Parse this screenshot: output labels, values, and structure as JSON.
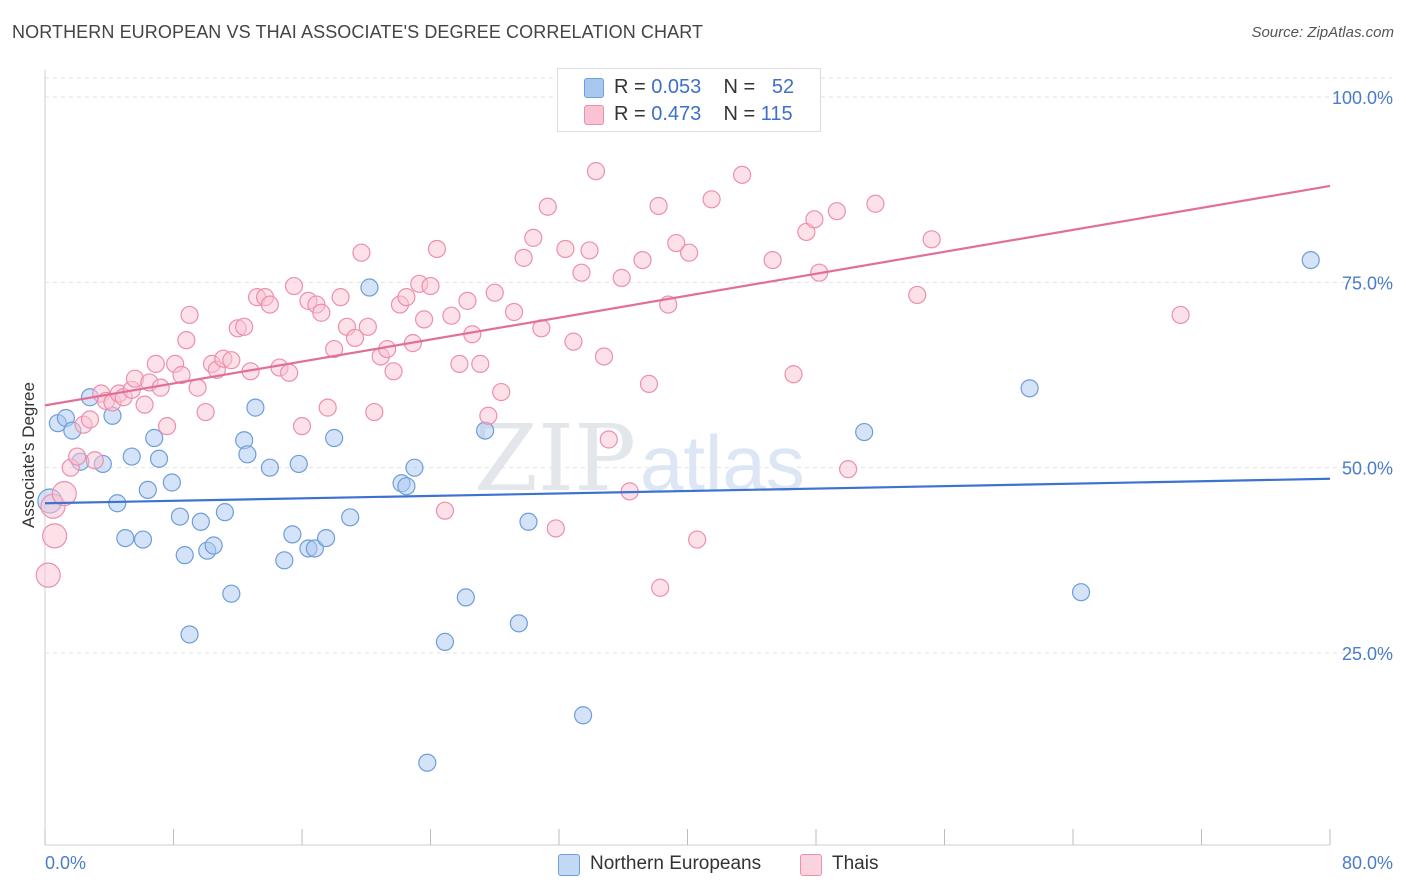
{
  "title": "NORTHERN EUROPEAN VS THAI ASSOCIATE'S DEGREE CORRELATION CHART",
  "source": "Source: ZipAtlas.com",
  "legend": {
    "r_label": "R =",
    "n_label": "N =",
    "rows": [
      {
        "r": "0.053",
        "n": "52",
        "color": "#a9c8f0",
        "border": "#6e9ed8"
      },
      {
        "r": "0.473",
        "n": "115",
        "color": "#f9c3d4",
        "border": "#ec8fae"
      }
    ]
  },
  "bottom_legend": [
    {
      "label": "Northern Europeans",
      "color": "#c3d8f5",
      "border": "#6e9ed8"
    },
    {
      "label": "Thais",
      "color": "#fbd3df",
      "border": "#ec8fae"
    }
  ],
  "watermark": {
    "zip": "ZIP",
    "atlas": "atlas"
  },
  "chart_data": {
    "type": "scatter",
    "title": "NORTHERN EUROPEAN VS THAI ASSOCIATE'S DEGREE CORRELATION CHART",
    "xlabel": "",
    "ylabel": "Associate's Degree",
    "xlim": [
      0,
      80
    ],
    "ylim": [
      0,
      105
    ],
    "x_tick_labels": [
      "0.0%",
      "80.0%"
    ],
    "y_ticks": [
      25,
      50,
      75,
      100
    ],
    "y_tick_labels": [
      "25.0%",
      "50.0%",
      "75.0%",
      "100.0%"
    ],
    "grid": "horizontal dashed",
    "series": [
      {
        "name": "Northern Europeans",
        "color": "#6e9ed8",
        "fill": "#a9c8f0",
        "line_color": "#3d72d1",
        "trend": {
          "x0": 0,
          "y0": 45.2,
          "x1": 80,
          "y1": 48.5
        },
        "points": [
          [
            0.3,
            45.5
          ],
          [
            0.8,
            56
          ],
          [
            1.3,
            56.7
          ],
          [
            1.7,
            55
          ],
          [
            2.2,
            50.8
          ],
          [
            2.8,
            59.5
          ],
          [
            3.6,
            50.5
          ],
          [
            4.2,
            57
          ],
          [
            4.5,
            45.2
          ],
          [
            5,
            40.5
          ],
          [
            5.4,
            51.5
          ],
          [
            6.1,
            40.3
          ],
          [
            6.4,
            47
          ],
          [
            6.8,
            54
          ],
          [
            7.1,
            51.2
          ],
          [
            7.9,
            48
          ],
          [
            8.4,
            43.4
          ],
          [
            8.7,
            38.2
          ],
          [
            9,
            27.5
          ],
          [
            9.7,
            42.7
          ],
          [
            10.1,
            38.8
          ],
          [
            10.5,
            39.5
          ],
          [
            11.2,
            44
          ],
          [
            11.6,
            33
          ],
          [
            12.4,
            53.7
          ],
          [
            12.6,
            51.8
          ],
          [
            13.1,
            58.1
          ],
          [
            14,
            50
          ],
          [
            14.9,
            37.5
          ],
          [
            15.4,
            41
          ],
          [
            15.8,
            50.5
          ],
          [
            16.4,
            39.1
          ],
          [
            16.8,
            39.1
          ],
          [
            17.5,
            40.5
          ],
          [
            18,
            54
          ],
          [
            19,
            43.3
          ],
          [
            20.2,
            74.3
          ],
          [
            22.2,
            47.9
          ],
          [
            22.5,
            47.5
          ],
          [
            23,
            50
          ],
          [
            23.8,
            10.2
          ],
          [
            24.9,
            26.5
          ],
          [
            26.2,
            32.5
          ],
          [
            27.4,
            55
          ],
          [
            29.5,
            29
          ],
          [
            30.1,
            42.7
          ],
          [
            33.5,
            16.6
          ],
          [
            51,
            54.8
          ],
          [
            61.3,
            60.7
          ],
          [
            64.5,
            33.2
          ],
          [
            78.8,
            78
          ]
        ]
      },
      {
        "name": "Thais",
        "color": "#ec8fae",
        "fill": "#f9c3d4",
        "line_color": "#e0709a",
        "trend": {
          "x0": 0,
          "y0": 58.4,
          "x1": 80,
          "y1": 88
        },
        "points": [
          [
            0.2,
            35.5
          ],
          [
            0.5,
            44.8
          ],
          [
            0.6,
            40.8
          ],
          [
            1.2,
            46.5
          ],
          [
            1.6,
            50
          ],
          [
            2,
            51.5
          ],
          [
            2.4,
            55.8
          ],
          [
            2.8,
            56.5
          ],
          [
            3.1,
            51
          ],
          [
            3.5,
            60
          ],
          [
            3.8,
            59
          ],
          [
            4.2,
            58.8
          ],
          [
            4.6,
            60
          ],
          [
            4.9,
            59.5
          ],
          [
            5.4,
            60.5
          ],
          [
            5.6,
            62
          ],
          [
            6.2,
            58.5
          ],
          [
            6.5,
            61.5
          ],
          [
            6.9,
            64
          ],
          [
            7.2,
            60.8
          ],
          [
            7.6,
            55.6
          ],
          [
            8.1,
            64
          ],
          [
            8.5,
            62.5
          ],
          [
            8.8,
            67.2
          ],
          [
            9,
            70.6
          ],
          [
            9.5,
            60.8
          ],
          [
            10,
            57.5
          ],
          [
            10.4,
            64
          ],
          [
            10.7,
            63.2
          ],
          [
            11.1,
            64.7
          ],
          [
            11.6,
            64.5
          ],
          [
            12,
            68.8
          ],
          [
            12.4,
            69
          ],
          [
            12.8,
            63
          ],
          [
            13.2,
            73
          ],
          [
            13.7,
            73
          ],
          [
            14,
            72
          ],
          [
            14.6,
            63.5
          ],
          [
            15.2,
            62.8
          ],
          [
            15.5,
            74.5
          ],
          [
            16,
            55.6
          ],
          [
            16.4,
            72.5
          ],
          [
            16.9,
            72
          ],
          [
            17.2,
            70.9
          ],
          [
            17.6,
            58.1
          ],
          [
            18,
            66
          ],
          [
            18.4,
            73
          ],
          [
            18.8,
            69
          ],
          [
            19.3,
            67.5
          ],
          [
            19.7,
            79
          ],
          [
            20.1,
            69
          ],
          [
            20.5,
            57.5
          ],
          [
            20.9,
            65
          ],
          [
            21.3,
            66
          ],
          [
            21.7,
            63
          ],
          [
            22.1,
            72
          ],
          [
            22.5,
            73
          ],
          [
            22.9,
            66.8
          ],
          [
            23.3,
            74.8
          ],
          [
            23.6,
            70
          ],
          [
            24,
            74.5
          ],
          [
            24.4,
            79.5
          ],
          [
            24.9,
            44.2
          ],
          [
            25.3,
            70.5
          ],
          [
            25.8,
            64
          ],
          [
            26.3,
            72.5
          ],
          [
            26.6,
            68
          ],
          [
            27.1,
            64
          ],
          [
            27.6,
            57
          ],
          [
            28,
            73.6
          ],
          [
            28.4,
            60.2
          ],
          [
            29.2,
            71
          ],
          [
            29.8,
            78.3
          ],
          [
            30.4,
            81
          ],
          [
            30.9,
            68.8
          ],
          [
            31.3,
            85.2
          ],
          [
            31.8,
            41.8
          ],
          [
            32.4,
            79.5
          ],
          [
            32.9,
            67
          ],
          [
            33.4,
            76.3
          ],
          [
            33.9,
            79.3
          ],
          [
            34.3,
            90
          ],
          [
            34.8,
            65
          ],
          [
            35.1,
            53.8
          ],
          [
            35.9,
            75.6
          ],
          [
            36.4,
            46.8
          ],
          [
            37.2,
            78
          ],
          [
            37.6,
            61.3
          ],
          [
            38.2,
            85.3
          ],
          [
            38.3,
            33.8
          ],
          [
            38.8,
            72
          ],
          [
            39.3,
            80.3
          ],
          [
            40.1,
            79
          ],
          [
            40.6,
            40.3
          ],
          [
            41.5,
            86.2
          ],
          [
            43.4,
            89.5
          ],
          [
            45.3,
            78
          ],
          [
            46.6,
            62.6
          ],
          [
            47.4,
            81.8
          ],
          [
            47.9,
            83.5
          ],
          [
            48.2,
            76.3
          ],
          [
            49.3,
            84.6
          ],
          [
            50,
            49.8
          ],
          [
            51.7,
            85.6
          ],
          [
            54.3,
            73.3
          ],
          [
            55.2,
            80.8
          ],
          [
            70.7,
            70.6
          ]
        ]
      }
    ]
  }
}
